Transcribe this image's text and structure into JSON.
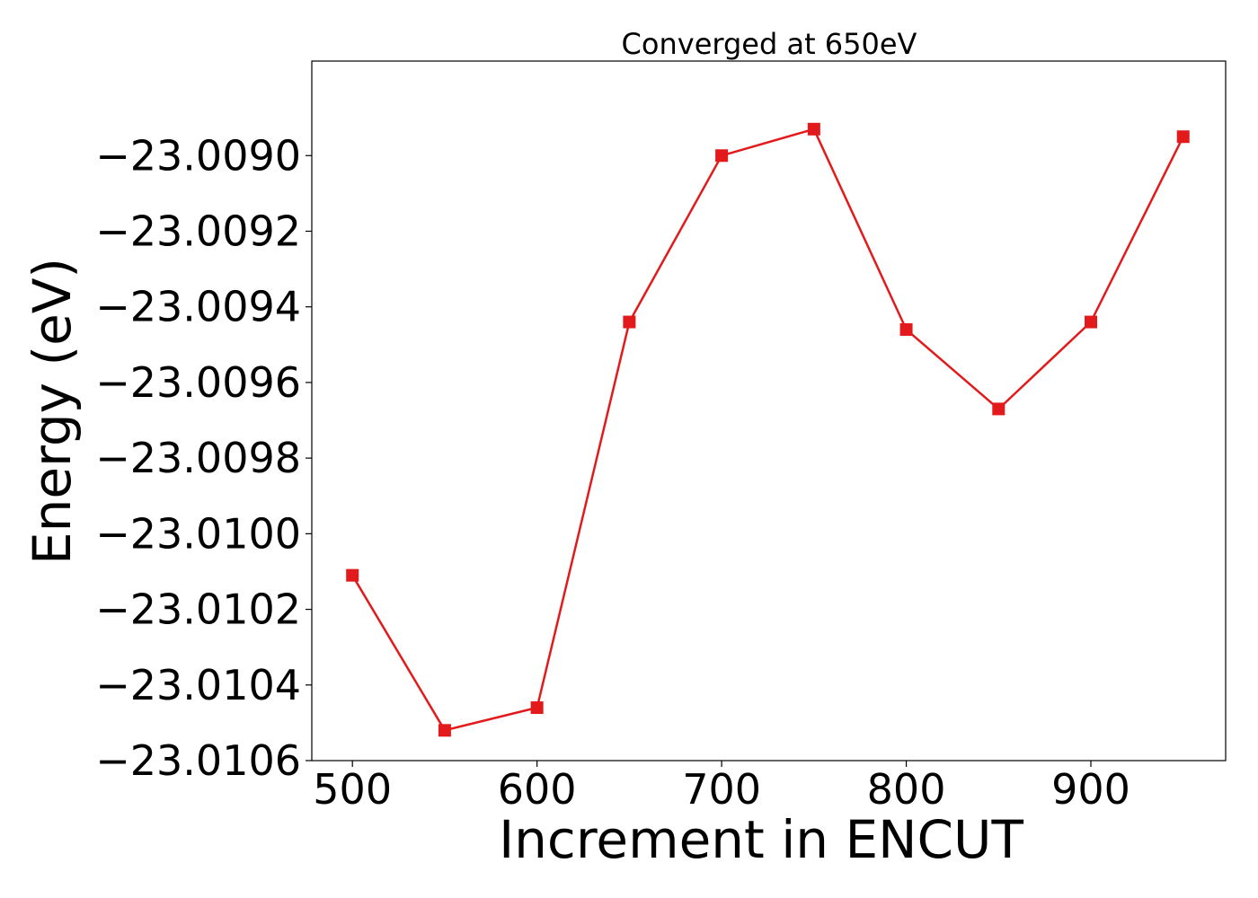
{
  "chart_data": {
    "type": "line",
    "title": "Converged at 650eV",
    "xlabel": "Increment in ENCUT",
    "ylabel": "Energy (eV)",
    "x": [
      500,
      550,
      600,
      650,
      700,
      750,
      800,
      850,
      900,
      950
    ],
    "series": [
      {
        "values": [
          -23.01011,
          -23.01052,
          -23.01046,
          -23.00944,
          -23.009,
          -23.00893,
          -23.00946,
          -23.00967,
          -23.00944,
          -23.00895
        ],
        "color": "#e31a1c",
        "marker": "square"
      }
    ],
    "xlim": [
      478,
      973
    ],
    "ylim": [
      -23.0106,
      -23.00875
    ],
    "xticks": [
      500,
      600,
      700,
      800,
      900
    ],
    "xtick_labels": [
      "500",
      "600",
      "700",
      "800",
      "900"
    ],
    "yticks": [
      -23.009,
      -23.0092,
      -23.0094,
      -23.0096,
      -23.0098,
      -23.01,
      -23.0102,
      -23.0104,
      -23.0106
    ],
    "ytick_labels": [
      "−23.0090",
      "−23.0092",
      "−23.0094",
      "−23.0096",
      "−23.0098",
      "−23.0100",
      "−23.0102",
      "−23.0104",
      "−23.0106"
    ],
    "grid": false,
    "legend": false
  }
}
